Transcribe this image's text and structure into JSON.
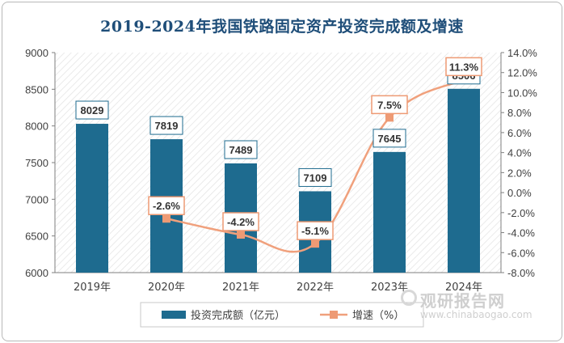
{
  "chart_data": {
    "type": "bar+line",
    "title": "2019-2024年我国铁路固定资产投资完成额及增速",
    "categories": [
      "2019年",
      "2020年",
      "2021年",
      "2022年",
      "2023年",
      "2024年"
    ],
    "series": [
      {
        "name": "投资完成额（亿元）",
        "type": "bar",
        "axis": "left",
        "values": [
          8029,
          7819,
          7489,
          7109,
          7645,
          8506
        ],
        "color": "#1e6b8f"
      },
      {
        "name": "增速（%）",
        "type": "line",
        "axis": "right",
        "values": [
          null,
          -2.6,
          -4.2,
          -5.1,
          7.5,
          11.3
        ],
        "color": "#f0a07c"
      }
    ],
    "y_left": {
      "min": 6000,
      "max": 9000,
      "ticks": [
        "6000",
        "6500",
        "7000",
        "7500",
        "8000",
        "8500",
        "9000"
      ]
    },
    "y_right": {
      "min": -8,
      "max": 14,
      "ticks": [
        "-8.0%",
        "-6.0%",
        "-4.0%",
        "-2.0%",
        "0.0%",
        "2.0%",
        "4.0%",
        "6.0%",
        "8.0%",
        "10.0%",
        "12.0%",
        "14.0%"
      ]
    },
    "bar_labels": [
      "8029",
      "7819",
      "7489",
      "7109",
      "7645",
      "8506"
    ],
    "line_labels": [
      "",
      "-2.6%",
      "-4.2%",
      "-5.1%",
      "7.5%",
      "11.3%"
    ],
    "legend": [
      "投资完成额（亿元）",
      "增速（%）"
    ],
    "legend_position": "bottom",
    "grid": false
  },
  "watermark": {
    "cn": "观研报告网",
    "en": "www.chinabaogao.com"
  }
}
